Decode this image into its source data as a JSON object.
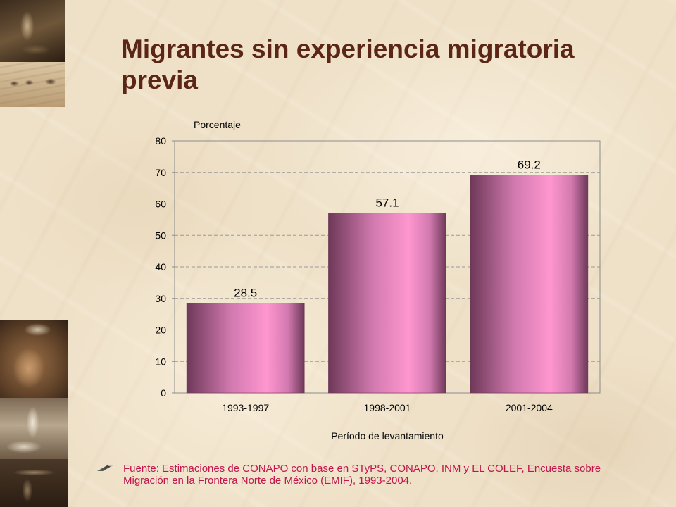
{
  "chart_data": {
    "type": "bar",
    "title": "Migrantes sin experiencia migratoria previa",
    "categories": [
      "1993-1997",
      "1998-2001",
      "2001-2004"
    ],
    "values": [
      28.5,
      57.1,
      69.2
    ],
    "xlabel": "Período de levantamiento",
    "ylabel": "Porcentaje",
    "ylim": [
      0,
      80
    ],
    "yticks": [
      0,
      10,
      20,
      30,
      40,
      50,
      60,
      70,
      80
    ],
    "grid": true,
    "legend": "none",
    "bar_colors": {
      "edge": "#6e3858",
      "mid": "#d27ab0",
      "highlight": "#ff96cf"
    }
  },
  "footer": {
    "bullet_icon": "arrow-bullet-icon",
    "source_lines": [
      "Fuente: Estimaciones de CONAPO con base en STyPS, CONAPO, INM y EL COLEF, Encuesta sobre",
      "Migración en la Frontera Norte de México (EMIF), 1993-2004."
    ]
  },
  "colors": {
    "title": "#5b2616",
    "source_text": "#c2154c",
    "grid": "#9a9a9a",
    "axis": "#8c8c8c"
  }
}
